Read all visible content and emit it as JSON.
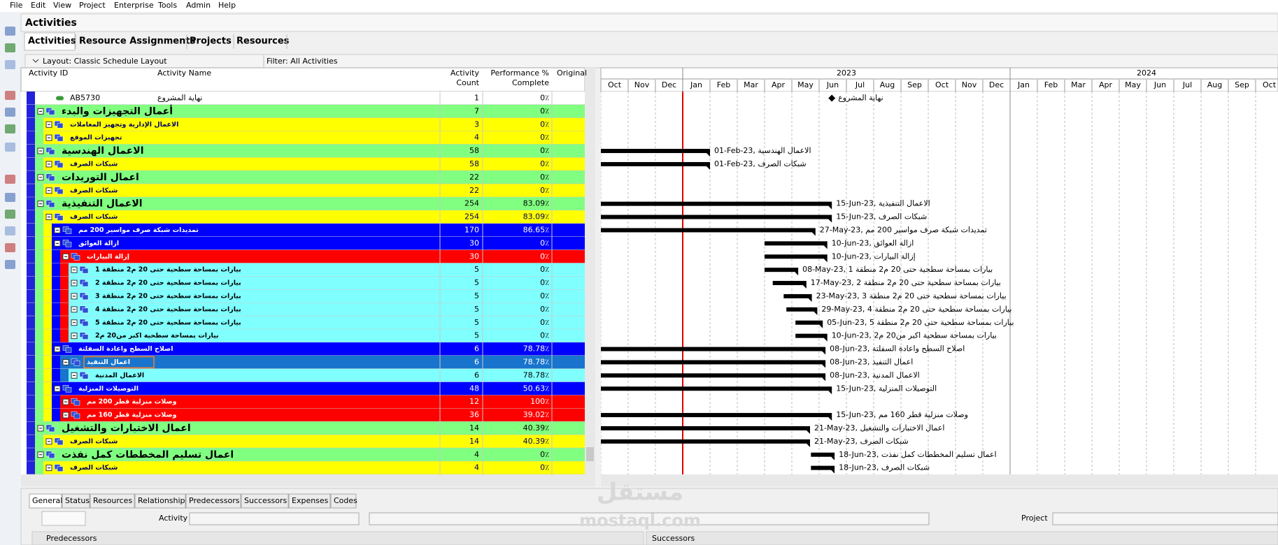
{
  "menu": [
    "File",
    "Edit",
    "View",
    "Project",
    "Enterprise",
    "Tools",
    "Admin",
    "Help"
  ],
  "window_title": "Activities",
  "tabs": [
    "Activities",
    "Resource Assignments",
    "Projects",
    "Resources"
  ],
  "layout": "Layout: Classic Schedule Layout",
  "filter": "Filter: All Activities",
  "columns": {
    "id": "Activity ID",
    "name": "Activity Name",
    "count": [
      "Activity",
      "Count"
    ],
    "performance": [
      "Performance %",
      "Complete"
    ],
    "original": "Original"
  },
  "project_color": "#2222dd",
  "timeline": {
    "years": [
      "2023",
      "2024"
    ],
    "months": [
      "Oct",
      "Nov",
      "Dec",
      "Jan",
      "Feb",
      "Mar",
      "Apr",
      "May",
      "Jun",
      "Jul",
      "Aug",
      "Sep",
      "Oct",
      "Nov",
      "Dec",
      "Jan",
      "Feb",
      "Mar",
      "Apr",
      "May",
      "Jun",
      "Jul",
      "Aug",
      "Sep",
      "Oct"
    ]
  },
  "rows": [
    {
      "id": "AB5730",
      "name": "نهاية المشروع",
      "count": 1,
      "performance": "0٪",
      "level": 1,
      "color": "#ffffff",
      "milestone": "15-Jun-23"
    },
    {
      "name": "أعمال التجهيزات والبدء",
      "count": 7,
      "performance": "0٪",
      "level": 1,
      "color": "#80ff80"
    },
    {
      "name": "الاعمال الإدارية وتجهيز المعاملات",
      "count": 3,
      "performance": "0٪",
      "level": 2,
      "color": "#ffff00"
    },
    {
      "name": "تجهيزات الموقع",
      "count": 4,
      "performance": "0٪",
      "level": 2,
      "color": "#ffff00"
    },
    {
      "name": "الاعمال الهندسية",
      "count": 58,
      "performance": "0٪",
      "level": 1,
      "color": "#80ff80",
      "start": "01-Sep-22",
      "bar_label": "01-Feb-23, الاعمال الهندسية"
    },
    {
      "name": "شبكات الصرف",
      "count": 58,
      "performance": "0٪",
      "level": 2,
      "color": "#ffff00",
      "start": "01-Sep-22",
      "bar_label": "01-Feb-23, شبكات الصرف"
    },
    {
      "name": "اعمال التوريدات",
      "count": 22,
      "performance": "0٪",
      "level": 1,
      "color": "#80ff80"
    },
    {
      "name": "شبكات الصرف",
      "count": 22,
      "performance": "0٪",
      "level": 2,
      "color": "#ffff00"
    },
    {
      "name": "الاعمال التنفيذية",
      "count": 254,
      "performance": "83.09٪",
      "level": 1,
      "color": "#80ff80",
      "start": "01-Sep-22",
      "bar_label": "15-Jun-23, الاعمال التنفيذية"
    },
    {
      "name": "شبكات الصرف",
      "count": 254,
      "performance": "83.09٪",
      "level": 2,
      "color": "#ffff00",
      "start": "01-Sep-22",
      "bar_label": "15-Jun-23, شبكات الصرف"
    },
    {
      "name": "تمديدات شبكة صرف مواسير 200 مم",
      "count": 170,
      "performance": "86.65٪",
      "level": 3,
      "color": "#0000ff",
      "start": "01-Sep-22",
      "bar_label": "27-May-23, تمديدات شبكة صرف مواسير 200 مم"
    },
    {
      "name": "ازالة العوائق",
      "count": 30,
      "performance": "0٪",
      "level": 3,
      "color": "#0000ff",
      "start": "01-Apr-23",
      "bar_label": "10-Jun-23, ازالة العوائق"
    },
    {
      "name": "إزالة البيارات",
      "count": 30,
      "performance": "0٪",
      "level": 4,
      "color": "#ff0000",
      "start": "01-Apr-23",
      "bar_label": "10-Jun-23, إزالة البيارات"
    },
    {
      "name": "بيارات بمساحة سطحية حتى 20 م2 منطقة 1",
      "count": 5,
      "performance": "0٪",
      "level": 5,
      "color": "#80ffff",
      "start": "01-Apr-23",
      "bar_label": "08-May-23, بيارات بمساحة سطحية حتى 20 م2 منطقة 1"
    },
    {
      "name": "بيارات بمساحة سطحية حتى 20 م2 منطقة 2",
      "count": 5,
      "performance": "0٪",
      "level": 5,
      "color": "#80ffff",
      "start": "10-Apr-23",
      "bar_label": "17-May-23, بيارات بمساحة سطحية حتى 20 م2 منطقة 2"
    },
    {
      "name": "بيارات بمساحة سطحية حتى 20 م2 منطقة 3",
      "count": 5,
      "performance": "0٪",
      "level": 5,
      "color": "#80ffff",
      "start": "22-Apr-23",
      "bar_label": "23-May-23, بيارات بمساحة سطحية حتى 20 م2 منطقة 3"
    },
    {
      "name": "بيارات بمساحة سطحية حتى 20 م2 منطقة 4",
      "count": 5,
      "performance": "0٪",
      "level": 5,
      "color": "#80ffff",
      "start": "25-Apr-23",
      "bar_label": "29-May-23, بيارات بمساحة سطحية حتى 20 م2 منطقة 4"
    },
    {
      "name": "بيارات بمساحة سطحية حتى 20 م2 منطقة 5",
      "count": 5,
      "performance": "0٪",
      "level": 5,
      "color": "#80ffff",
      "start": "05-May-23",
      "bar_label": "05-Jun-23, بيارات بمساحة سطحية حتى 20 م2 منطقة 5"
    },
    {
      "name": "بيارات بمساحة سطحية اكبر من20 م2",
      "count": 5,
      "performance": "0٪",
      "level": 5,
      "color": "#80ffff",
      "start": "05-May-23",
      "bar_label": "10-Jun-23, بيارات بمساحة سطحية اكبر من20 م2"
    },
    {
      "name": "اصلاح السطح واعادة السفلتة",
      "count": 6,
      "performance": "78.78٪",
      "level": 3,
      "color": "#0000ff",
      "start": "01-Sep-22",
      "bar_label": "08-Jun-23, اصلاح السطح واعادة السفلتة"
    },
    {
      "name": "اعمال التنفيذ",
      "count": 6,
      "performance": "78.78٪",
      "level": 4,
      "color": "#1874cd",
      "selected": true,
      "start": "01-Sep-22",
      "bar_label": "08-Jun-23, اعمال التنفيذ"
    },
    {
      "name": "الاعمال المدنية",
      "count": 6,
      "performance": "78.78٪",
      "level": 5,
      "color": "#80ffff",
      "start": "01-Sep-22",
      "bar_label": "08-Jun-23, الاعمال المدنية"
    },
    {
      "name": "التوصيلات المنزلية",
      "count": 48,
      "performance": "50.63٪",
      "level": 3,
      "color": "#0000ff",
      "start": "01-Sep-22",
      "bar_label": "15-Jun-23, التوصيلات المنزلية"
    },
    {
      "name": "وصلات منزلية قطر 200 مم",
      "count": 12,
      "performance": "100٪",
      "level": 4,
      "color": "#ff0000"
    },
    {
      "name": "وصلات منزلية قطر 160 مم",
      "count": 36,
      "performance": "39.02٪",
      "level": 4,
      "color": "#ff0000",
      "start": "01-Sep-22",
      "bar_label": "15-Jun-23, وصلات منزلية قطر 160 مم"
    },
    {
      "name": "اعمال الاختبارات والتشغيل",
      "count": 14,
      "performance": "40.39٪",
      "level": 1,
      "color": "#80ff80",
      "start": "01-Sep-22",
      "bar_label": "21-May-23, اعمال الاختبارات والتشغيل"
    },
    {
      "name": "شبكات الصرف",
      "count": 14,
      "performance": "40.39٪",
      "level": 2,
      "color": "#ffff00",
      "start": "01-Sep-22",
      "bar_label": "21-May-23, شبكات الصرف"
    },
    {
      "name": "اعمال تسليم المخططات كمل نفذت",
      "count": 4,
      "performance": "0٪",
      "level": 1,
      "color": "#80ff80",
      "start": "22-May-23",
      "bar_label": "18-Jun-23, اعمال تسليم المخططات كمل نفذت"
    },
    {
      "name": "شبكات الصرف",
      "count": 4,
      "performance": "0٪",
      "level": 2,
      "color": "#ffff00",
      "start": "22-May-23",
      "bar_label": "18-Jun-23, شبكات الصرف"
    }
  ],
  "details_tabs": [
    "General",
    "Status",
    "Resources",
    "Relationships",
    "Predecessors",
    "Successors",
    "Expenses",
    "Codes"
  ],
  "details_labels": {
    "activity": "Activity",
    "project": "Project",
    "predecessors": "Predecessors",
    "successors": "Successors"
  },
  "watermark": [
    "مستقل",
    "mostaql.com"
  ]
}
